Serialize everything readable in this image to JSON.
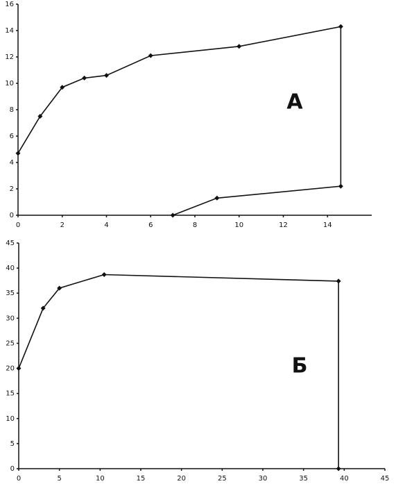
{
  "chart_data": [
    {
      "type": "line",
      "label": "А",
      "x": [
        0,
        1,
        2,
        3,
        4,
        6,
        10,
        14.6,
        14.6,
        9,
        7
      ],
      "series": [
        {
          "color": "#111111",
          "values": [
            4.7,
            7.5,
            9.7,
            10.4,
            10.6,
            12.1,
            12.8,
            14.3,
            2.2,
            1.3,
            0
          ]
        }
      ],
      "xlim": [
        0,
        16
      ],
      "ylim": [
        0,
        16
      ],
      "xticks": [
        0,
        2,
        4,
        6,
        8,
        10,
        12,
        14
      ],
      "yticks": [
        0,
        2,
        4,
        6,
        8,
        10,
        12,
        14,
        16
      ]
    },
    {
      "type": "line",
      "label": "Б",
      "x": [
        0,
        3,
        5,
        10.5,
        39.3,
        39.3
      ],
      "series": [
        {
          "color": "#111111",
          "values": [
            20,
            32,
            36,
            38.7,
            37.4,
            0
          ]
        }
      ],
      "xlim": [
        0,
        45
      ],
      "ylim": [
        0,
        45
      ],
      "xticks": [
        0,
        5,
        10,
        15,
        20,
        25,
        30,
        35,
        40,
        45
      ],
      "yticks": [
        0,
        5,
        10,
        15,
        20,
        25,
        30,
        35,
        40,
        45
      ]
    }
  ]
}
